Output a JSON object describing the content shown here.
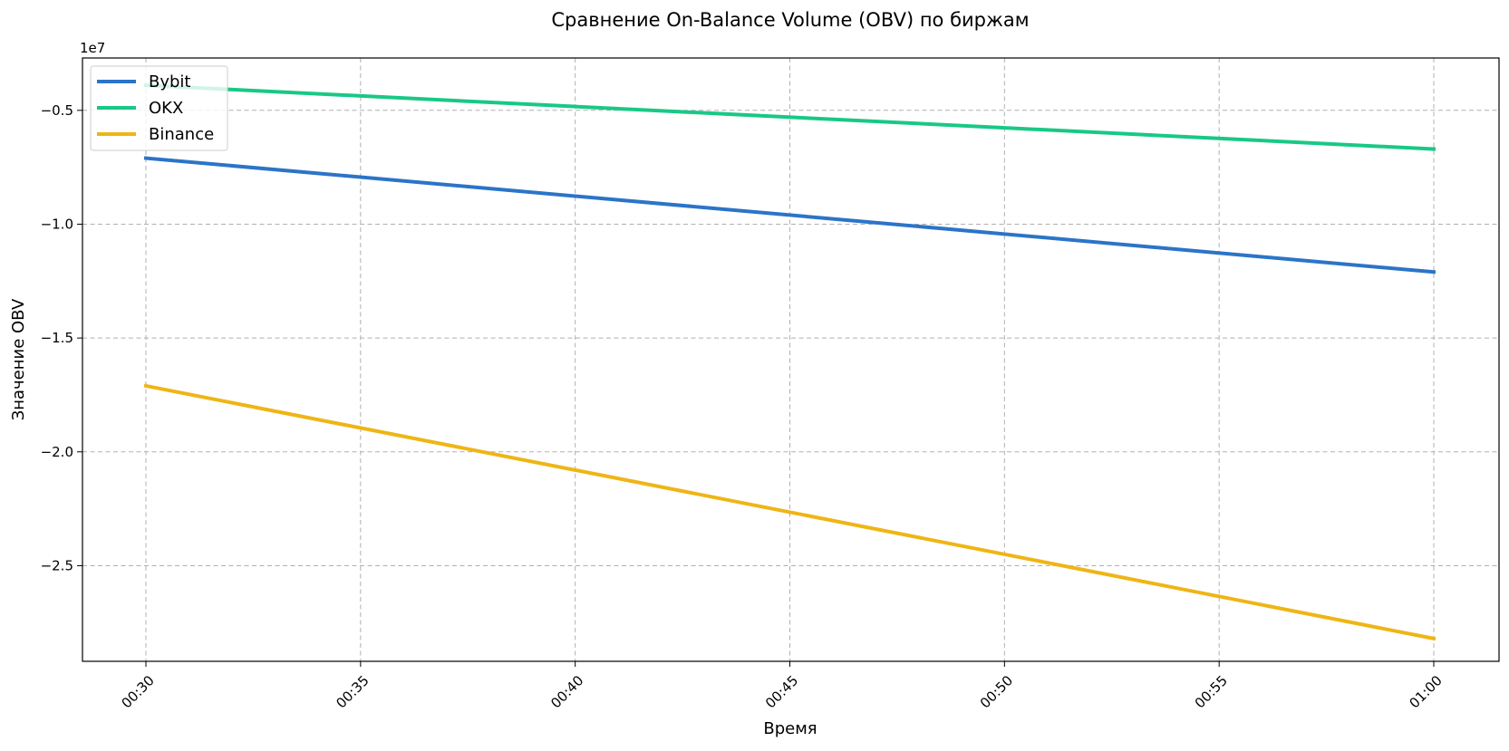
{
  "chart_data": {
    "type": "line",
    "title": "Сравнение On-Balance Volume (OBV) по биржам",
    "xlabel": "Время",
    "ylabel": "Значение OBV",
    "y_offset_label": "1e7",
    "x": [
      "00:30",
      "01:00"
    ],
    "x_ticks": [
      "00:30",
      "00:35",
      "00:40",
      "00:45",
      "00:50",
      "00:55",
      "01:00"
    ],
    "y_ticks": [
      -0.5,
      -1.0,
      -1.5,
      -2.0,
      -2.5
    ],
    "y_tick_labels": [
      "−0.5",
      "−1.0",
      "−1.5",
      "−2.0",
      "−2.5"
    ],
    "ylim": [
      -2.92,
      -0.27
    ],
    "grid": true,
    "legend_position": "top-left",
    "series": [
      {
        "name": "Bybit",
        "color": "#2b74c8",
        "values": [
          -0.71,
          -1.21
        ]
      },
      {
        "name": "OKX",
        "color": "#19c886",
        "values": [
          -0.39,
          -0.67
        ]
      },
      {
        "name": "Binance",
        "color": "#efb516",
        "values": [
          -1.71,
          -2.82
        ]
      }
    ]
  }
}
